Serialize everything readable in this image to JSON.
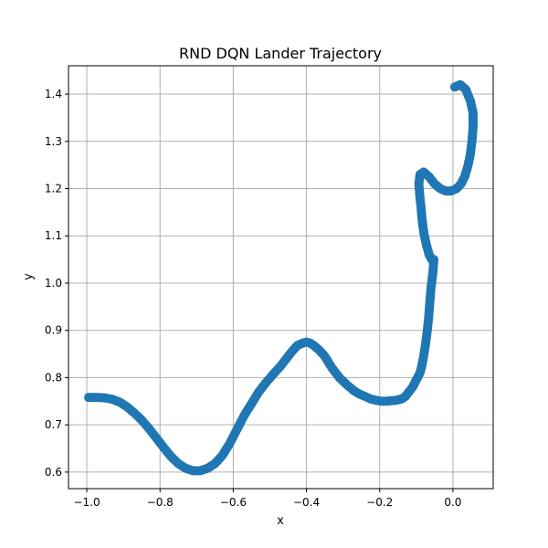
{
  "chart_data": {
    "type": "scatter",
    "title": "RND DQN Lander Trajectory",
    "xlabel": "x",
    "ylabel": "y",
    "xlim": [
      -1.05,
      0.11
    ],
    "ylim": [
      0.565,
      1.46
    ],
    "xticks": [
      -1.0,
      -0.8,
      -0.6,
      -0.4,
      -0.2,
      0.0
    ],
    "xtick_labels": [
      "−1.0",
      "−0.8",
      "−0.6",
      "−0.4",
      "−0.2",
      "0.0"
    ],
    "yticks": [
      0.6,
      0.7,
      0.8,
      0.9,
      1.0,
      1.1,
      1.2,
      1.3,
      1.4
    ],
    "ytick_labels": [
      "0.6",
      "0.7",
      "0.8",
      "0.9",
      "1.0",
      "1.1",
      "1.2",
      "1.3",
      "1.4"
    ],
    "grid": true,
    "color": "#1f77b4",
    "series": [
      {
        "x": [
          0.005,
          0.02,
          0.035,
          0.048,
          0.055,
          0.055,
          0.052,
          0.047,
          0.04,
          0.032,
          0.022,
          0.01,
          -0.005,
          -0.02,
          -0.035,
          -0.05,
          -0.065,
          -0.08,
          -0.09,
          -0.093,
          -0.09,
          -0.087,
          -0.085,
          -0.082,
          -0.078,
          -0.072,
          -0.065,
          -0.058,
          -0.052,
          -0.055,
          -0.06,
          -0.063,
          -0.066,
          -0.07,
          -0.075,
          -0.08,
          -0.085,
          -0.09,
          -0.1,
          -0.11,
          -0.12,
          -0.13,
          -0.14,
          -0.155,
          -0.17,
          -0.18,
          -0.195,
          -0.21,
          -0.225,
          -0.24,
          -0.255,
          -0.27,
          -0.29,
          -0.31,
          -0.33,
          -0.35,
          -0.365,
          -0.38,
          -0.39,
          -0.4,
          -0.41,
          -0.425,
          -0.44,
          -0.455,
          -0.47,
          -0.49,
          -0.51,
          -0.53,
          -0.55,
          -0.57,
          -0.59,
          -0.61,
          -0.63,
          -0.65,
          -0.67,
          -0.69,
          -0.71,
          -0.73,
          -0.75,
          -0.77,
          -0.79,
          -0.81,
          -0.83,
          -0.85,
          -0.87,
          -0.89,
          -0.91,
          -0.93,
          -0.95,
          -0.97,
          -0.985,
          -0.995
        ],
        "y": [
          1.415,
          1.42,
          1.41,
          1.385,
          1.36,
          1.33,
          1.3,
          1.27,
          1.245,
          1.225,
          1.21,
          1.2,
          1.195,
          1.195,
          1.2,
          1.21,
          1.225,
          1.235,
          1.23,
          1.21,
          1.18,
          1.16,
          1.14,
          1.12,
          1.1,
          1.08,
          1.06,
          1.05,
          1.05,
          1.02,
          0.99,
          0.96,
          0.93,
          0.9,
          0.87,
          0.845,
          0.825,
          0.81,
          0.795,
          0.78,
          0.77,
          0.76,
          0.755,
          0.752,
          0.751,
          0.75,
          0.75,
          0.752,
          0.755,
          0.76,
          0.765,
          0.772,
          0.785,
          0.8,
          0.82,
          0.845,
          0.858,
          0.868,
          0.873,
          0.875,
          0.873,
          0.868,
          0.855,
          0.84,
          0.825,
          0.808,
          0.79,
          0.77,
          0.745,
          0.72,
          0.69,
          0.66,
          0.635,
          0.618,
          0.608,
          0.603,
          0.603,
          0.608,
          0.618,
          0.633,
          0.652,
          0.672,
          0.692,
          0.71,
          0.725,
          0.738,
          0.748,
          0.754,
          0.757,
          0.758,
          0.758,
          0.758
        ]
      }
    ]
  }
}
